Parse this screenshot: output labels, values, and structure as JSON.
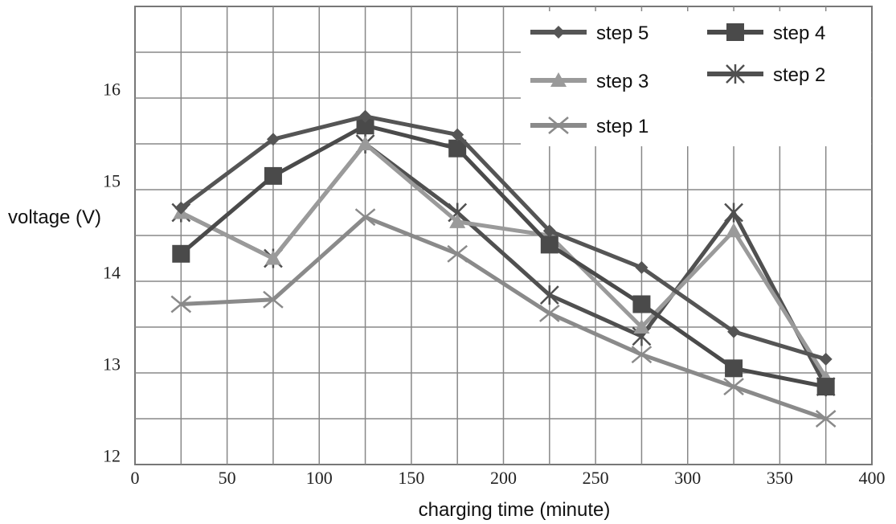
{
  "chart_data": {
    "type": "line",
    "xlabel": "charging time (minute)",
    "ylabel": "voltage  (V)",
    "xlim": [
      0,
      400
    ],
    "ylim": [
      11.95,
      16.95
    ],
    "xticks": [
      "0",
      "50",
      "100",
      "150",
      "200",
      "250",
      "300",
      "350",
      "400"
    ],
    "xtick_values": [
      0,
      50,
      100,
      150,
      200,
      250,
      300,
      350,
      400
    ],
    "yticks": [
      "12",
      "13",
      "14",
      "15",
      "16"
    ],
    "ytick_values": [
      12.05,
      13.05,
      14.05,
      15.05,
      16.05
    ],
    "grid": true,
    "legend_position": "top-right",
    "x": [
      25,
      75,
      125,
      175,
      225,
      275,
      325,
      375
    ],
    "series": [
      {
        "name": "step 5",
        "marker": "diamond",
        "color": "#555555",
        "values": [
          14.75,
          15.5,
          15.75,
          15.55,
          14.5,
          14.1,
          13.4,
          13.1
        ]
      },
      {
        "name": "step 4",
        "marker": "square",
        "color": "#4a4a4a",
        "values": [
          14.25,
          15.1,
          15.65,
          15.4,
          14.35,
          13.7,
          13.0,
          12.8
        ]
      },
      {
        "name": "step 3",
        "marker": "triangle",
        "color": "#9a9a9a",
        "values": [
          14.7,
          14.2,
          15.45,
          14.6,
          14.45,
          13.45,
          14.5,
          12.9
        ]
      },
      {
        "name": "step 2",
        "marker": "asterisk",
        "color": "#505050",
        "values": [
          14.7,
          14.2,
          15.45,
          14.7,
          13.8,
          13.35,
          14.7,
          12.8
        ]
      },
      {
        "name": "step 1",
        "marker": "cross",
        "color": "#8a8a8a",
        "values": [
          13.7,
          13.75,
          14.65,
          14.25,
          13.6,
          13.15,
          12.8,
          12.45
        ]
      }
    ]
  }
}
